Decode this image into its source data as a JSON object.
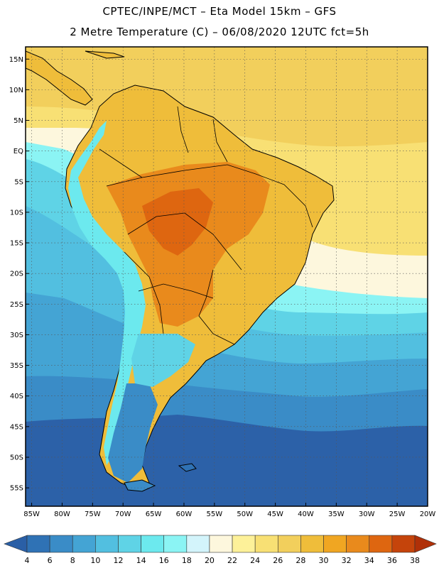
{
  "header": {
    "line1": "CPTEC/INPE/MCT –  Eta Model 15km – GFS",
    "line2": "2 Metre Temperature (C) – 06/08/2020 12UTC fct=5h"
  },
  "axes": {
    "lat_labels": [
      "15N",
      "10N",
      "5N",
      "EQ",
      "5S",
      "10S",
      "15S",
      "20S",
      "25S",
      "30S",
      "35S",
      "40S",
      "45S",
      "50S",
      "55S"
    ],
    "lat_values": [
      15,
      10,
      5,
      0,
      -5,
      -10,
      -15,
      -20,
      -25,
      -30,
      -35,
      -40,
      -45,
      -50,
      -55
    ],
    "lon_labels": [
      "85W",
      "80W",
      "75W",
      "70W",
      "65W",
      "60W",
      "55W",
      "50W",
      "45W",
      "40W",
      "35W",
      "30W",
      "25W",
      "20W"
    ],
    "lon_values": [
      -85,
      -80,
      -75,
      -70,
      -65,
      -60,
      -55,
      -50,
      -45,
      -40,
      -35,
      -30,
      -25,
      -20
    ],
    "lon_range": [
      -86,
      -20
    ],
    "lat_range": [
      -58,
      17
    ]
  },
  "legend": {
    "labels": [
      "4",
      "6",
      "8",
      "10",
      "12",
      "14",
      "16",
      "18",
      "20",
      "22",
      "24",
      "26",
      "28",
      "30",
      "32",
      "34",
      "36",
      "38"
    ],
    "colors": [
      "#2a5fa6",
      "#2f72b5",
      "#3a8cc7",
      "#44a4d4",
      "#52bfe0",
      "#5fd3e6",
      "#6ce9ee",
      "#8bf4f4",
      "#d3f4fb",
      "#fdf7dd",
      "#fdf199",
      "#f8e074",
      "#f2cf5c",
      "#efbd3a",
      "#f0a622",
      "#e98a1c",
      "#de6610",
      "#c5440b",
      "#b03008"
    ],
    "units": "C"
  },
  "map_colors": {
    "ocean_cold": "#2c61a8",
    "ocean_cool": "#3c8ec8",
    "ocean_mild": "#50bde0",
    "ocean_warm": "#63dbea",
    "tropical_sea": "#f2cf5c",
    "land_hot": "#e98a1c",
    "land_warm": "#efbd3a",
    "andes": "#6ce9ee",
    "coast_line": "#000000"
  }
}
